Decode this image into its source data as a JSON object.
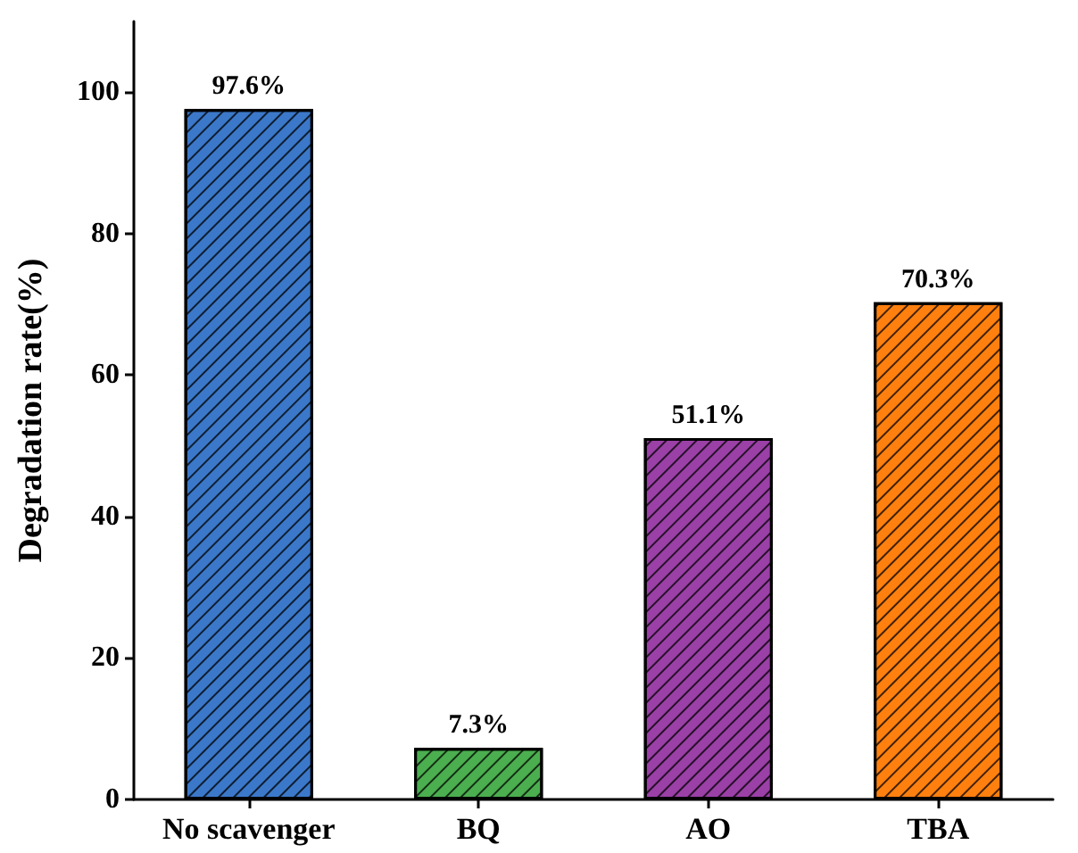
{
  "chart_data": {
    "type": "bar",
    "ylabel": "Degradation rate(%)",
    "categories": [
      "No scavenger",
      "BQ",
      "AO",
      "TBA"
    ],
    "values": [
      97.6,
      7.3,
      51.1,
      70.3
    ],
    "colors": [
      "#3b78c9",
      "#4bae4f",
      "#9a40a6",
      "#ff800e"
    ],
    "value_labels": [
      "97.6%",
      "7.3%",
      "51.1%",
      "70.3%"
    ],
    "ylim": [
      0,
      110
    ],
    "yticks": [
      0,
      20,
      40,
      60,
      80,
      100
    ],
    "grid": false
  }
}
